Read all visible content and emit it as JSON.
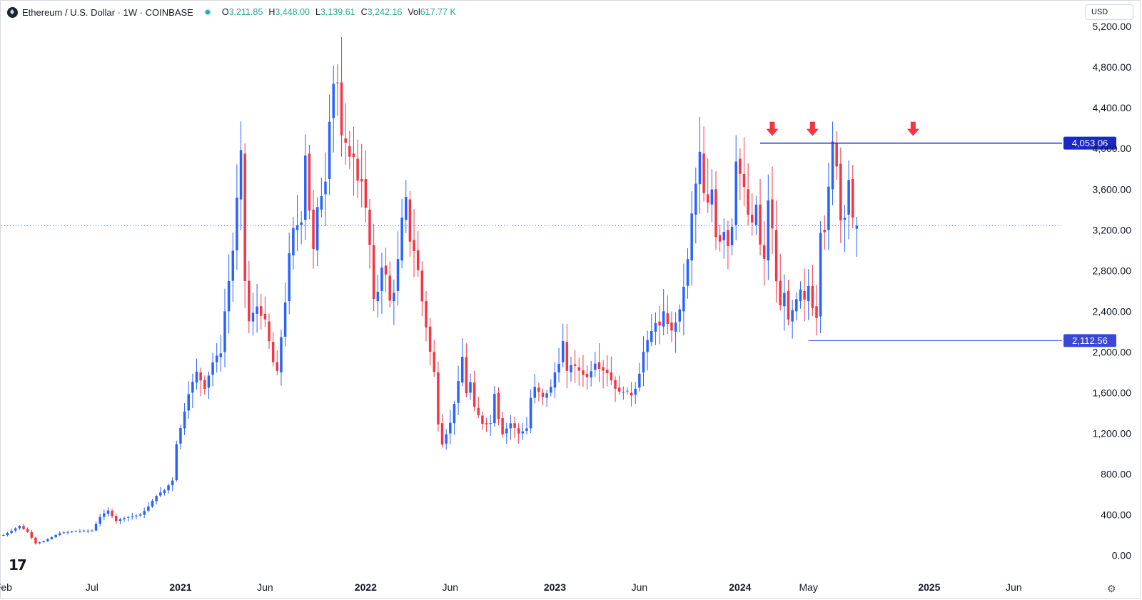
{
  "header": {
    "symbol": "Ethereum / U.S. Dollar · 1W · COINBASE",
    "ohlc": [
      {
        "k": "O",
        "v": "3,211.85"
      },
      {
        "k": "H",
        "v": "3,448.00"
      },
      {
        "k": "L",
        "v": "3,139.61"
      },
      {
        "k": "C",
        "v": "3,242.16"
      },
      {
        "k": "Vol",
        "v": "617.77 K"
      }
    ]
  },
  "currency_label": "USD",
  "brand": "17",
  "colors": {
    "up": "#2962ff",
    "down": "#f23645",
    "resistance_line": "#1a27c9",
    "support_line": "#3949d6",
    "price_line": "#2962ff",
    "arrow": "#f23645",
    "axis_text": "#131722"
  },
  "chart_data": {
    "type": "candlestick",
    "timeframe": "1W",
    "y_axis": {
      "ticks": [
        "0.00",
        "400.00",
        "800.00",
        "1,200.00",
        "1,600.00",
        "2,000.00",
        "2,400.00",
        "2,800.00",
        "3,200.00",
        "3,600.00",
        "4,000.00",
        "4,400.00",
        "4,800.00",
        "5,200.00"
      ],
      "range": [
        -80,
        5250
      ]
    },
    "x_axis": {
      "ticks": [
        {
          "label": "Feb",
          "week": 0,
          "bold": false
        },
        {
          "label": "Jul",
          "week": 22,
          "bold": false
        },
        {
          "label": "2021",
          "week": 44,
          "bold": true
        },
        {
          "label": "Jun",
          "week": 65,
          "bold": false
        },
        {
          "label": "2022",
          "week": 90,
          "bold": true
        },
        {
          "label": "Jun",
          "week": 111,
          "bold": false
        },
        {
          "label": "2023",
          "week": 137,
          "bold": true
        },
        {
          "label": "Jun",
          "week": 158,
          "bold": false
        },
        {
          "label": "2024",
          "week": 183,
          "bold": true
        },
        {
          "label": "May",
          "week": 200,
          "bold": false
        },
        {
          "label": "2025",
          "week": 230,
          "bold": true
        },
        {
          "label": "Jun",
          "week": 251,
          "bold": false
        }
      ],
      "weeks_range": [
        -0.5,
        263
      ]
    },
    "horizontal_lines": [
      {
        "name": "resistance",
        "value": 4053.06,
        "label": "4,053.06",
        "from_week": 188,
        "style": "solid"
      },
      {
        "name": "support",
        "value": 2112.56,
        "label": "2,112.56",
        "from_week": 200,
        "style": "solid"
      },
      {
        "name": "last-price",
        "value": 3242.16,
        "style": "dotted"
      }
    ],
    "arrows_at_weeks": [
      191,
      201,
      226
    ],
    "close_path": [
      [
        0,
        200
      ],
      [
        4,
        290
      ],
      [
        6,
        230
      ],
      [
        8,
        120
      ],
      [
        10,
        140
      ],
      [
        14,
        220
      ],
      [
        18,
        240
      ],
      [
        22,
        245
      ],
      [
        24,
        380
      ],
      [
        26,
        440
      ],
      [
        28,
        340
      ],
      [
        30,
        370
      ],
      [
        34,
        400
      ],
      [
        36,
        480
      ],
      [
        38,
        590
      ],
      [
        40,
        640
      ],
      [
        42,
        740
      ],
      [
        43,
        1100
      ],
      [
        44,
        1250
      ],
      [
        46,
        1600
      ],
      [
        48,
        1800
      ],
      [
        50,
        1650
      ],
      [
        52,
        1900
      ],
      [
        54,
        2000
      ],
      [
        55,
        2400
      ],
      [
        57,
        3000
      ],
      [
        58,
        3500
      ],
      [
        59,
        3950
      ],
      [
        60,
        2700
      ],
      [
        61,
        2300
      ],
      [
        63,
        2450
      ],
      [
        65,
        2300
      ],
      [
        67,
        1900
      ],
      [
        68,
        1800
      ],
      [
        70,
        2500
      ],
      [
        71,
        2950
      ],
      [
        72,
        3200
      ],
      [
        74,
        3300
      ],
      [
        75,
        3950
      ],
      [
        76,
        3400
      ],
      [
        77,
        3000
      ],
      [
        78,
        3400
      ],
      [
        80,
        3700
      ],
      [
        81,
        4300
      ],
      [
        82,
        4650
      ],
      [
        83,
        4650
      ],
      [
        84,
        4100
      ],
      [
        86,
        3950
      ],
      [
        87,
        3900
      ],
      [
        88,
        3700
      ],
      [
        89,
        3700
      ],
      [
        90,
        3400
      ],
      [
        91,
        3050
      ],
      [
        92,
        2500
      ],
      [
        93,
        2600
      ],
      [
        94,
        2850
      ],
      [
        95,
        2750
      ],
      [
        96,
        2500
      ],
      [
        97,
        2600
      ],
      [
        98,
        2900
      ],
      [
        99,
        3300
      ],
      [
        100,
        3500
      ],
      [
        101,
        3100
      ],
      [
        102,
        3000
      ],
      [
        103,
        2800
      ],
      [
        104,
        2500
      ],
      [
        106,
        2000
      ],
      [
        107,
        1800
      ],
      [
        108,
        1300
      ],
      [
        109,
        1100
      ],
      [
        110,
        1200
      ],
      [
        111,
        1300
      ],
      [
        112,
        1500
      ],
      [
        113,
        1700
      ],
      [
        114,
        1950
      ],
      [
        115,
        1600
      ],
      [
        116,
        1700
      ],
      [
        117,
        1450
      ],
      [
        119,
        1300
      ],
      [
        121,
        1300
      ],
      [
        122,
        1600
      ],
      [
        123,
        1350
      ],
      [
        124,
        1200
      ],
      [
        125,
        1250
      ],
      [
        126,
        1300
      ],
      [
        128,
        1200
      ],
      [
        130,
        1250
      ],
      [
        131,
        1550
      ],
      [
        132,
        1650
      ],
      [
        133,
        1600
      ],
      [
        134,
        1550
      ],
      [
        136,
        1650
      ],
      [
        137,
        1800
      ],
      [
        138,
        1900
      ],
      [
        139,
        2100
      ],
      [
        140,
        1800
      ],
      [
        141,
        1880
      ],
      [
        143,
        1820
      ],
      [
        145,
        1750
      ],
      [
        147,
        1900
      ],
      [
        148,
        1850
      ],
      [
        150,
        1800
      ],
      [
        152,
        1650
      ],
      [
        153,
        1600
      ],
      [
        154,
        1620
      ],
      [
        156,
        1580
      ],
      [
        157,
        1650
      ],
      [
        158,
        1800
      ],
      [
        159,
        2000
      ],
      [
        160,
        2100
      ],
      [
        161,
        2200
      ],
      [
        162,
        2300
      ],
      [
        163,
        2250
      ],
      [
        164,
        2380
      ],
      [
        166,
        2200
      ],
      [
        168,
        2400
      ],
      [
        170,
        2900
      ],
      [
        171,
        3350
      ],
      [
        172,
        3650
      ],
      [
        173,
        3950
      ],
      [
        174,
        3550
      ],
      [
        175,
        3450
      ],
      [
        176,
        3600
      ],
      [
        177,
        3150
      ],
      [
        178,
        3100
      ],
      [
        179,
        3200
      ],
      [
        180,
        3050
      ],
      [
        181,
        3250
      ],
      [
        182,
        3900
      ],
      [
        183,
        3750
      ],
      [
        184,
        3600
      ],
      [
        185,
        3350
      ],
      [
        186,
        3250
      ],
      [
        187,
        3450
      ],
      [
        188,
        3050
      ],
      [
        189,
        2900
      ],
      [
        190,
        3500
      ],
      [
        191,
        3200
      ],
      [
        192,
        2700
      ],
      [
        193,
        2450
      ],
      [
        194,
        2600
      ],
      [
        195,
        2300
      ],
      [
        196,
        2400
      ],
      [
        197,
        2500
      ],
      [
        198,
        2600
      ],
      [
        199,
        2500
      ],
      [
        200,
        2650
      ],
      [
        201,
        2450
      ],
      [
        202,
        2350
      ],
      [
        203,
        3200
      ],
      [
        204,
        3200
      ],
      [
        205,
        3600
      ],
      [
        206,
        4050
      ],
      [
        207,
        3850
      ],
      [
        208,
        3300
      ],
      [
        209,
        3350
      ],
      [
        210,
        3700
      ],
      [
        211,
        3300
      ],
      [
        212,
        3242
      ]
    ]
  }
}
